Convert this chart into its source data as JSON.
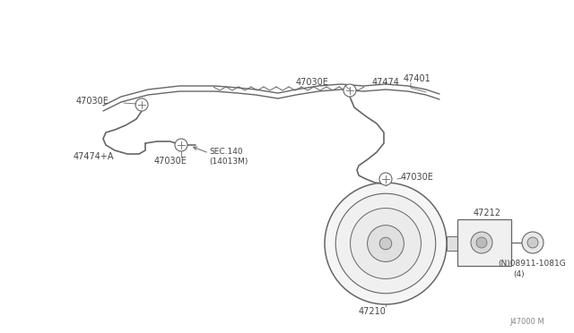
{
  "bg_color": "#ffffff",
  "line_color": "#666666",
  "text_color": "#444444",
  "watermark": "J47000 M",
  "fig_w": 6.4,
  "fig_h": 3.72,
  "dpi": 100,
  "parts": {
    "main_pipe_label": "47401",
    "clamp_tl": "47030E",
    "hose_left_label": "47474+A",
    "clamp_bl": "47030E",
    "sec140": "SEC.140",
    "sec140b": "(14013M)",
    "clamp_right_top": "47030E",
    "hose_right_label": "47474",
    "clamp_booster_top": "47030E",
    "plate_label": "47212",
    "bolt_label": "(N)08911-1081G",
    "bolt_label2": "(4)",
    "booster_label": "47210"
  }
}
